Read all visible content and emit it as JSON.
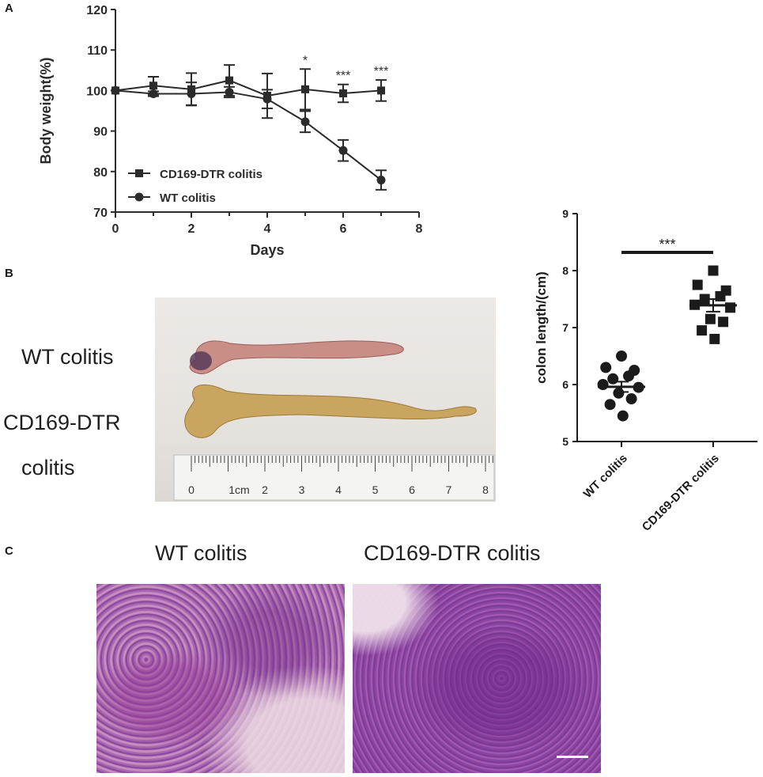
{
  "panels": {
    "a": "A",
    "b": "B",
    "c": "C"
  },
  "chart_data": [
    {
      "type": "line",
      "xlabel": "Days",
      "ylabel": "Body weight(%)",
      "xlim": [
        0,
        8
      ],
      "ylim": [
        70,
        120
      ],
      "xticks": [
        "0",
        "2",
        "4",
        "6",
        "8"
      ],
      "yticks": [
        "70",
        "80",
        "90",
        "100",
        "110",
        "120"
      ],
      "legend_position": "bottom-left",
      "series": [
        {
          "name": "CD169-DTR colitis",
          "marker": "square",
          "x": [
            0,
            1,
            2,
            3,
            4,
            5,
            6,
            7
          ],
          "y": [
            100,
            101.2,
            100.3,
            102.5,
            98.7,
            100.3,
            99.3,
            100.0
          ],
          "err": [
            0,
            2.2,
            4.0,
            3.8,
            5.5,
            5.0,
            2.2,
            2.6
          ]
        },
        {
          "name": "WT colitis",
          "marker": "circle",
          "x": [
            0,
            1,
            2,
            3,
            4,
            5,
            6,
            7
          ],
          "y": [
            100,
            99.2,
            99.2,
            99.6,
            97.9,
            92.3,
            85.2,
            77.9
          ],
          "err": [
            0,
            0.6,
            2.8,
            1.3,
            2.3,
            2.6,
            2.6,
            2.4
          ]
        }
      ],
      "annotations": [
        {
          "x": 5,
          "text": "*"
        },
        {
          "x": 6,
          "text": "***"
        },
        {
          "x": 7,
          "text": "***"
        }
      ]
    },
    {
      "type": "scatter",
      "ylabel": "colon length/(cm)",
      "ylim": [
        5,
        9
      ],
      "yticks": [
        "5",
        "6",
        "7",
        "8",
        "9"
      ],
      "categories": [
        "WT colitis",
        "CD169-DTR colitis"
      ],
      "series": [
        {
          "name": "WT colitis",
          "marker": "circle",
          "values": [
            6.5,
            6.3,
            6.25,
            6.1,
            6.15,
            6.0,
            5.95,
            5.85,
            5.75,
            5.65,
            5.45
          ],
          "mean": 5.96,
          "sem": 0.09
        },
        {
          "name": "CD169-DTR colitis",
          "marker": "square",
          "values": [
            8.0,
            7.75,
            7.65,
            7.5,
            7.55,
            7.4,
            7.35,
            7.15,
            7.1,
            6.95,
            6.8
          ],
          "mean": 7.39,
          "sem": 0.11
        }
      ],
      "significance": "***"
    }
  ],
  "photo_labels": {
    "wt": "WT colitis",
    "dtr_line1": "CD169-DTR",
    "dtr_line2": "colitis"
  },
  "ruler_numbers": [
    "0",
    "1cm",
    "2",
    "3",
    "4",
    "5",
    "6",
    "7",
    "8"
  ],
  "histology_titles": {
    "wt": "WT colitis",
    "dtr": "CD169-DTR colitis"
  }
}
